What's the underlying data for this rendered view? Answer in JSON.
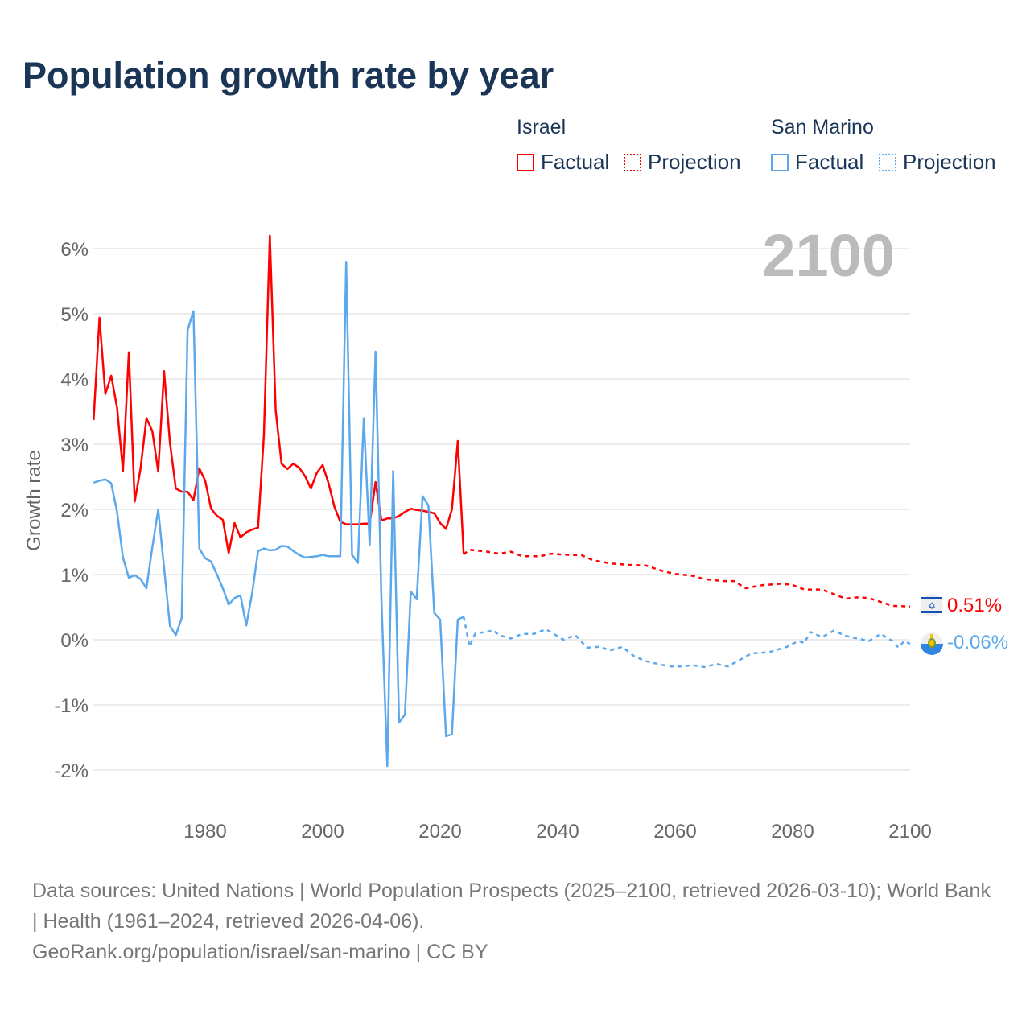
{
  "title": "Population growth rate by year",
  "legend": {
    "groups": [
      {
        "name": "Israel",
        "factual": "Factual",
        "projection": "Projection",
        "color": "#ff0000"
      },
      {
        "name": "San Marino",
        "factual": "Factual",
        "projection": "Projection",
        "color": "#5ca8ec"
      }
    ]
  },
  "year_label": "2100",
  "end_labels": {
    "israel": "0.51%",
    "san_marino": "-0.06%"
  },
  "icons": {
    "israel": "israel-flag-icon",
    "san_marino": "san-marino-flag-icon"
  },
  "footer": {
    "line1": "Data sources: United Nations | World Population Prospects (2025–2100, retrieved 2026-03-10); World Bank | Health (1961–2024, retrieved 2026-04-06).",
    "line2": "GeoRank.org/population/israel/san-marino | CC BY"
  },
  "chart_data": {
    "type": "line",
    "title": "Population growth rate by year",
    "xlabel": "",
    "ylabel": "Growth rate",
    "xlim": [
      1961,
      2100
    ],
    "ylim": [
      -2.5,
      6.5
    ],
    "xticks": [
      1980,
      2000,
      2020,
      2040,
      2060,
      2080,
      2100
    ],
    "yticks": [
      -2,
      -1,
      0,
      1,
      2,
      3,
      4,
      5,
      6
    ],
    "ytick_labels": [
      "-2%",
      "-1%",
      "0%",
      "1%",
      "2%",
      "3%",
      "4%",
      "5%",
      "6%"
    ],
    "grid": true,
    "legend_position": "top-right",
    "series": [
      {
        "name": "Israel Factual",
        "color": "#ff0000",
        "style": "solid",
        "x": [
          1961,
          1962,
          1963,
          1964,
          1965,
          1966,
          1967,
          1968,
          1969,
          1970,
          1971,
          1972,
          1973,
          1974,
          1975,
          1976,
          1977,
          1978,
          1979,
          1980,
          1981,
          1982,
          1983,
          1984,
          1985,
          1986,
          1987,
          1988,
          1989,
          1990,
          1991,
          1992,
          1993,
          1994,
          1995,
          1996,
          1997,
          1998,
          1999,
          2000,
          2001,
          2002,
          2003,
          2004,
          2005,
          2006,
          2007,
          2008,
          2009,
          2010,
          2011,
          2012,
          2013,
          2014,
          2015,
          2016,
          2017,
          2018,
          2019,
          2020,
          2021,
          2022,
          2023,
          2024
        ],
        "y": [
          3.37,
          4.94,
          3.77,
          4.05,
          3.56,
          2.59,
          4.41,
          2.12,
          2.63,
          3.4,
          3.2,
          2.58,
          4.12,
          3.02,
          2.32,
          2.27,
          2.27,
          2.14,
          2.63,
          2.44,
          2.01,
          1.9,
          1.84,
          1.33,
          1.79,
          1.57,
          1.65,
          1.69,
          1.72,
          3.15,
          6.2,
          3.52,
          2.7,
          2.62,
          2.7,
          2.64,
          2.51,
          2.32,
          2.56,
          2.68,
          2.4,
          2.04,
          1.81,
          1.77,
          1.77,
          1.77,
          1.78,
          1.78,
          2.42,
          1.83,
          1.86,
          1.86,
          1.9,
          1.96,
          2.01,
          1.99,
          1.98,
          1.96,
          1.94,
          1.79,
          1.7,
          2.0,
          3.05,
          1.31
        ]
      },
      {
        "name": "Israel Projection",
        "color": "#ff0000",
        "style": "dashed",
        "x": [
          2024,
          2025,
          2028,
          2030,
          2032,
          2034,
          2037,
          2039,
          2042,
          2044,
          2046,
          2049,
          2052,
          2055,
          2058,
          2060,
          2063,
          2065,
          2068,
          2070,
          2072,
          2075,
          2077,
          2078,
          2080,
          2082,
          2085,
          2087,
          2089,
          2091,
          2093,
          2095,
          2097,
          2100
        ],
        "y": [
          1.31,
          1.38,
          1.35,
          1.32,
          1.35,
          1.28,
          1.28,
          1.32,
          1.3,
          1.3,
          1.22,
          1.17,
          1.15,
          1.14,
          1.05,
          1.01,
          0.98,
          0.93,
          0.9,
          0.9,
          0.79,
          0.84,
          0.85,
          0.86,
          0.84,
          0.77,
          0.77,
          0.7,
          0.63,
          0.65,
          0.64,
          0.58,
          0.52,
          0.51
        ]
      },
      {
        "name": "San Marino Factual",
        "color": "#5ca8ec",
        "style": "solid",
        "x": [
          1961,
          1962,
          1963,
          1964,
          1965,
          1966,
          1967,
          1968,
          1969,
          1970,
          1971,
          1972,
          1973,
          1974,
          1975,
          1976,
          1977,
          1978,
          1979,
          1980,
          1981,
          1982,
          1983,
          1984,
          1985,
          1986,
          1987,
          1988,
          1989,
          1990,
          1991,
          1992,
          1993,
          1994,
          1995,
          1996,
          1997,
          1998,
          1999,
          2000,
          2001,
          2002,
          2003,
          2004,
          2005,
          2006,
          2007,
          2008,
          2009,
          2010,
          2011,
          2012,
          2013,
          2014,
          2015,
          2016,
          2017,
          2018,
          2019,
          2020,
          2021,
          2022,
          2023,
          2024
        ],
        "y": [
          2.41,
          2.44,
          2.46,
          2.4,
          1.96,
          1.26,
          0.95,
          0.99,
          0.93,
          0.79,
          1.42,
          2.0,
          1.1,
          0.21,
          0.07,
          0.33,
          4.75,
          5.04,
          1.4,
          1.25,
          1.2,
          1.0,
          0.79,
          0.54,
          0.64,
          0.68,
          0.22,
          0.72,
          1.36,
          1.4,
          1.37,
          1.38,
          1.44,
          1.43,
          1.36,
          1.3,
          1.26,
          1.27,
          1.28,
          1.3,
          1.28,
          1.28,
          1.28,
          5.8,
          1.3,
          1.18,
          3.4,
          1.46,
          4.42,
          0.62,
          -1.94,
          2.59,
          -1.27,
          -1.15,
          0.74,
          0.62,
          2.2,
          2.06,
          0.41,
          0.31,
          -1.48,
          -1.45,
          0.31,
          0.35
        ]
      },
      {
        "name": "San Marino Projection",
        "color": "#5ca8ec",
        "style": "dashed",
        "x": [
          2024,
          2025,
          2026,
          2028,
          2029,
          2030,
          2032,
          2034,
          2036,
          2038,
          2041,
          2043,
          2045,
          2047,
          2049,
          2051,
          2053,
          2055,
          2057,
          2059,
          2061,
          2063,
          2065,
          2067,
          2069,
          2071,
          2073,
          2076,
          2079,
          2081,
          2082,
          2083,
          2085,
          2087,
          2089,
          2091,
          2093,
          2095,
          2097,
          2098,
          2099,
          2100
        ],
        "y": [
          0.35,
          -0.1,
          0.1,
          0.12,
          0.15,
          0.07,
          0.02,
          0.09,
          0.09,
          0.16,
          0.0,
          0.07,
          -0.12,
          -0.11,
          -0.16,
          -0.11,
          -0.25,
          -0.33,
          -0.37,
          -0.41,
          -0.41,
          -0.39,
          -0.42,
          -0.37,
          -0.41,
          -0.31,
          -0.21,
          -0.19,
          -0.11,
          -0.02,
          -0.05,
          0.12,
          0.04,
          0.14,
          0.06,
          0.02,
          -0.02,
          0.09,
          -0.02,
          -0.12,
          -0.02,
          -0.06
        ]
      }
    ]
  }
}
